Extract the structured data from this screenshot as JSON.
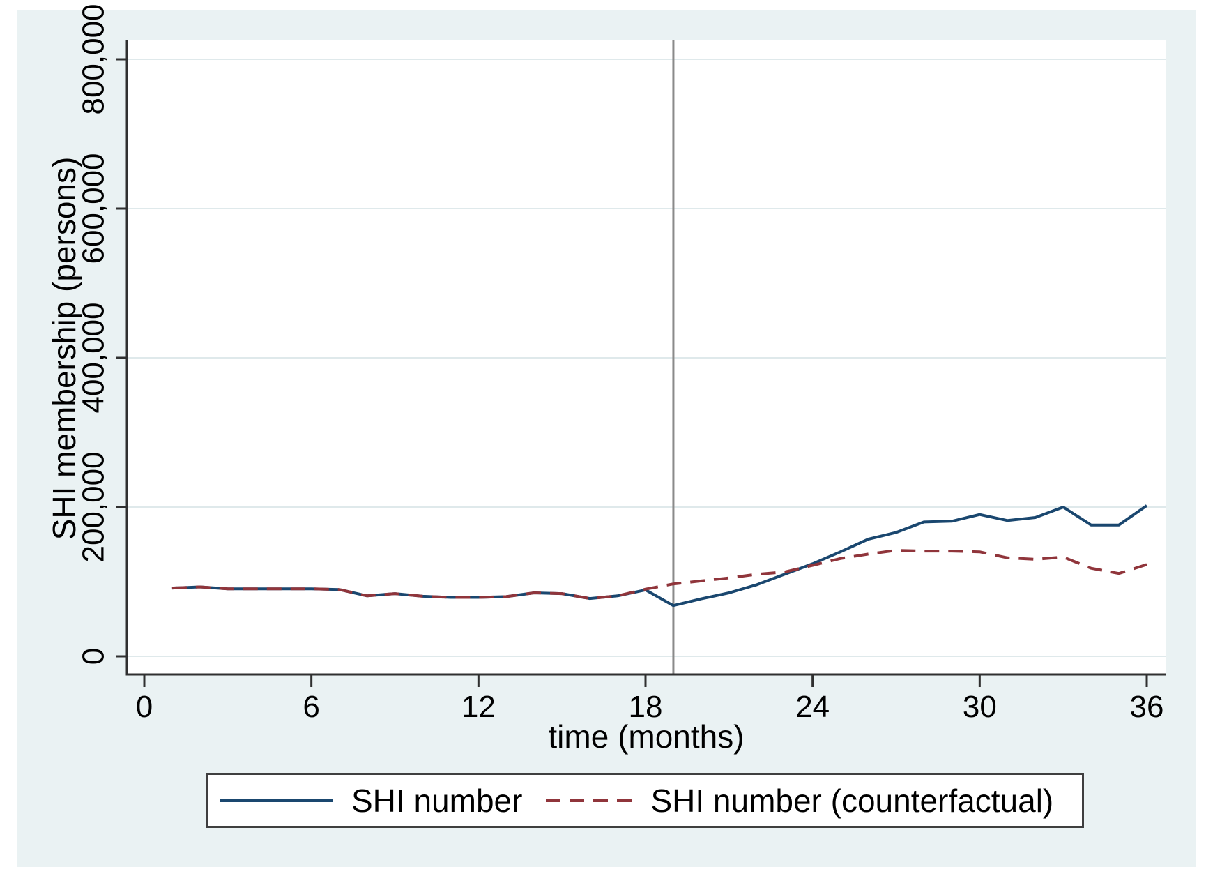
{
  "figure": {
    "background_color": "#eaf2f3",
    "plot_background_color": "#ffffff"
  },
  "chart_data": {
    "type": "line",
    "title": "",
    "xlabel": "time (months)",
    "ylabel": "SHI membership (persons)",
    "xlim": [
      0,
      36
    ],
    "ylim": [
      0,
      800000
    ],
    "xticks": [
      0,
      6,
      12,
      18,
      24,
      30,
      36
    ],
    "yticks": [
      {
        "value": 0,
        "label": "0"
      },
      {
        "value": 200000,
        "label": "200,000"
      },
      {
        "value": 400000,
        "label": "400,000"
      },
      {
        "value": 600000,
        "label": "600,000"
      },
      {
        "value": 800000,
        "label": "800,000"
      }
    ],
    "grid": "horizontal",
    "legend_position": "bottom",
    "vline_x": 19,
    "x": [
      1,
      2,
      3,
      4,
      5,
      6,
      7,
      8,
      9,
      10,
      11,
      12,
      13,
      14,
      15,
      16,
      17,
      18,
      19,
      20,
      21,
      22,
      23,
      24,
      25,
      26,
      27,
      28,
      29,
      30,
      31,
      32,
      33,
      34,
      35,
      36
    ],
    "series": [
      {
        "name": "SHI number",
        "style": "solid",
        "color": "#1a476f",
        "values": [
          91500,
          93000,
          90500,
          90500,
          90500,
          90500,
          89500,
          81000,
          84000,
          80500,
          79000,
          79000,
          80000,
          85000,
          84000,
          77500,
          81000,
          89000,
          68000,
          77000,
          85000,
          96000,
          110000,
          124000,
          140000,
          157000,
          166000,
          180000,
          181000,
          190000,
          182000,
          186000,
          200000,
          176000,
          176000,
          202000
        ]
      },
      {
        "name": "SHI number (counterfactual)",
        "style": "dashed",
        "color": "#90353b",
        "values": [
          91500,
          93000,
          90500,
          90500,
          90500,
          90500,
          89500,
          81000,
          84000,
          80500,
          79000,
          79000,
          80000,
          85000,
          84000,
          77500,
          81000,
          90000,
          97000,
          101000,
          105000,
          110000,
          113000,
          122000,
          131000,
          137000,
          142000,
          141000,
          141000,
          140000,
          132000,
          130000,
          133000,
          118000,
          111000,
          123000
        ]
      }
    ],
    "colors": {
      "grid": "#dfe9eb",
      "axis": "#303030",
      "vline": "#8a8a8a",
      "tick_text": "#000000"
    }
  }
}
